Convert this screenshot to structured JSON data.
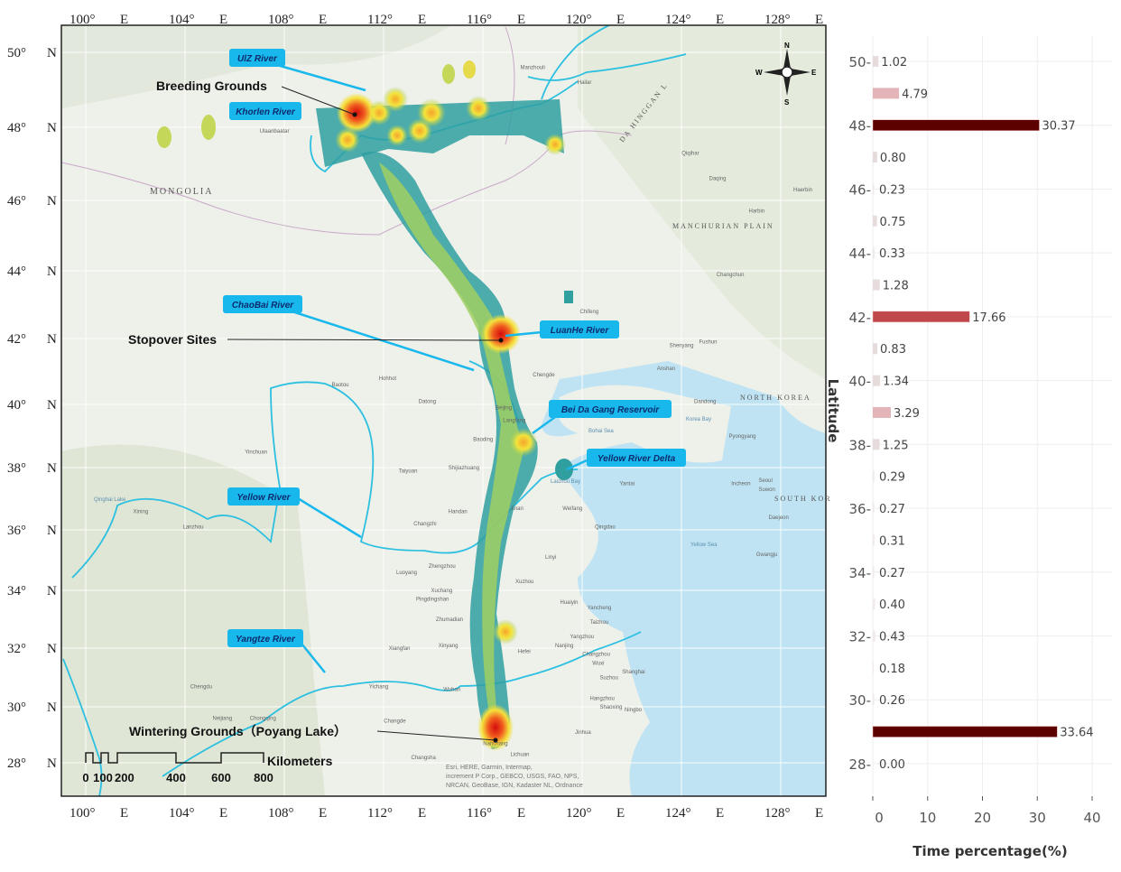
{
  "map": {
    "longitude_labels": [
      "100°",
      "104°",
      "108°",
      "112°",
      "116°",
      "120°",
      "124°",
      "128°"
    ],
    "longitude_suffix": "E",
    "latitude_labels": [
      "50°",
      "48°",
      "46°",
      "44°",
      "42°",
      "40°",
      "38°",
      "36°",
      "34°",
      "32°",
      "30°",
      "28°"
    ],
    "latitude_suffix": "N",
    "countries": {
      "mongolia": "MONGOLIA",
      "north_korea": "NORTH KOREA",
      "south_korea": "SOUTH KOR",
      "manchurian_plain": "MANCHURIAN PLAIN",
      "da_hinggan": "DA HINGGAN L"
    },
    "places": [
      "Ulaanbaatar",
      "Manzhouli",
      "Hailar",
      "Qiqihar",
      "Daqing",
      "Harbin",
      "Changchun",
      "Shenyang",
      "Fushun",
      "Anshan",
      "Dandong",
      "Chifeng",
      "Chengde",
      "Hohhot",
      "Baotou",
      "Datong",
      "Beijing",
      "Langfang",
      "Baoding",
      "Shijiazhuang",
      "Taiyuan",
      "Yinchuan",
      "Lanzhou",
      "Handan",
      "Changzhi",
      "Luoyang",
      "Zhengzhou",
      "Xuchang",
      "Pingdingshan",
      "Zhumadian",
      "Xiangfan",
      "Xinyang",
      "Wuhan",
      "Yichang",
      "Changde",
      "Changsha",
      "Nanchang",
      "Lichuan",
      "Hefei",
      "Nanjing",
      "Changzhou",
      "Wuxi",
      "Suzhou",
      "Shanghai",
      "Hangzhou",
      "Shaoxing",
      "Ningbo",
      "Jinhua",
      "Yantai",
      "Qingdao",
      "Weifang",
      "Linyi",
      "Xuzhou",
      "Huaiyin",
      "Yancheng",
      "Taizhou",
      "Yangzhou",
      "Jinan",
      "Incheon",
      "Seoul",
      "Suwon",
      "Daejeon",
      "Gwangju",
      "Pyongyang",
      "Chengdu",
      "Chongqing",
      "Neijiang",
      "Xining",
      "Haerbin"
    ],
    "sea_labels": {
      "bohai": "Bohai Sea",
      "laizhou": "Laizhou Bay",
      "korea_bay": "Korea Bay",
      "yellow_sea": "Yellow Sea",
      "qinghai": "Qinghai Lake"
    },
    "callouts": {
      "ulz": "UlZ River",
      "kherlen": "Khorlen River",
      "chaobai": "ChaoBai River",
      "luanhe": "LuanHe River",
      "beidagang": "Bei Da Gang Reservoir",
      "yellow_delta": "Yellow River Delta",
      "yellow_river": "Yellow River",
      "yangtze": "Yangtze River"
    },
    "sites": {
      "breeding": "Breeding Grounds",
      "stopover": "Stopover Sites",
      "wintering": "Wintering Grounds（Poyang Lake）"
    },
    "scale_bar": {
      "unit": "Kilometers",
      "labels": [
        "0",
        "100",
        "200",
        "400",
        "600",
        "800"
      ]
    },
    "compass": {
      "n": "N",
      "s": "S",
      "e": "E",
      "w": "W"
    },
    "attribution": [
      "Esri, HERE, Garmin, Intermap,",
      "increment P Corp., GEBCO, USGS, FAO, NPS,",
      "NRCAN, GeoBase, IGN, Kadaster NL, Ordnance"
    ],
    "colors": {
      "callout_box": "#19b8ec",
      "river": "#2cc0e0",
      "sea": "#bfe3f3",
      "land": "#eef0ea",
      "heat_low": "#2f9fa0",
      "heat_mid": "#f3e43c",
      "heat_high": "#e5231b"
    }
  },
  "chart_data": {
    "type": "bar",
    "orientation": "horizontal",
    "categories": [
      50,
      49,
      48,
      47,
      46,
      45,
      44,
      43,
      42,
      41,
      40,
      39,
      38,
      37,
      36,
      35,
      34,
      33,
      32,
      31,
      30,
      29,
      28
    ],
    "values": [
      1.02,
      4.79,
      30.37,
      0.8,
      0.23,
      0.75,
      0.33,
      1.28,
      17.66,
      0.83,
      1.34,
      3.29,
      1.25,
      0.29,
      0.27,
      0.31,
      0.27,
      0.4,
      0.43,
      0.18,
      0.26,
      33.64,
      0.0
    ],
    "value_labels": [
      "1.02",
      "4.79",
      "30.37",
      "0.80",
      "0.23",
      "0.75",
      "0.33",
      "1.28",
      "17.66",
      "0.83",
      "1.34",
      "3.29",
      "1.25",
      "0.29",
      "0.27",
      "0.31",
      "0.27",
      "0.40",
      "0.43",
      "0.18",
      "0.26",
      "33.64",
      "0.00"
    ],
    "xlabel": "Time percentage(%)",
    "ylabel": "Latitude",
    "xlim": [
      0,
      40
    ],
    "ylim": [
      27,
      50.5
    ],
    "x_ticks": [
      "0",
      "10",
      "20",
      "30",
      "40"
    ],
    "y_ticks": [
      "50",
      "48",
      "46",
      "44",
      "42",
      "40",
      "38",
      "36",
      "34",
      "32",
      "30",
      "28"
    ],
    "grid": true,
    "color_scale": {
      "low": "#f2eaea",
      "mid": "#e3b5b8",
      "high": "#c0474a",
      "max": "#5c0000"
    }
  }
}
